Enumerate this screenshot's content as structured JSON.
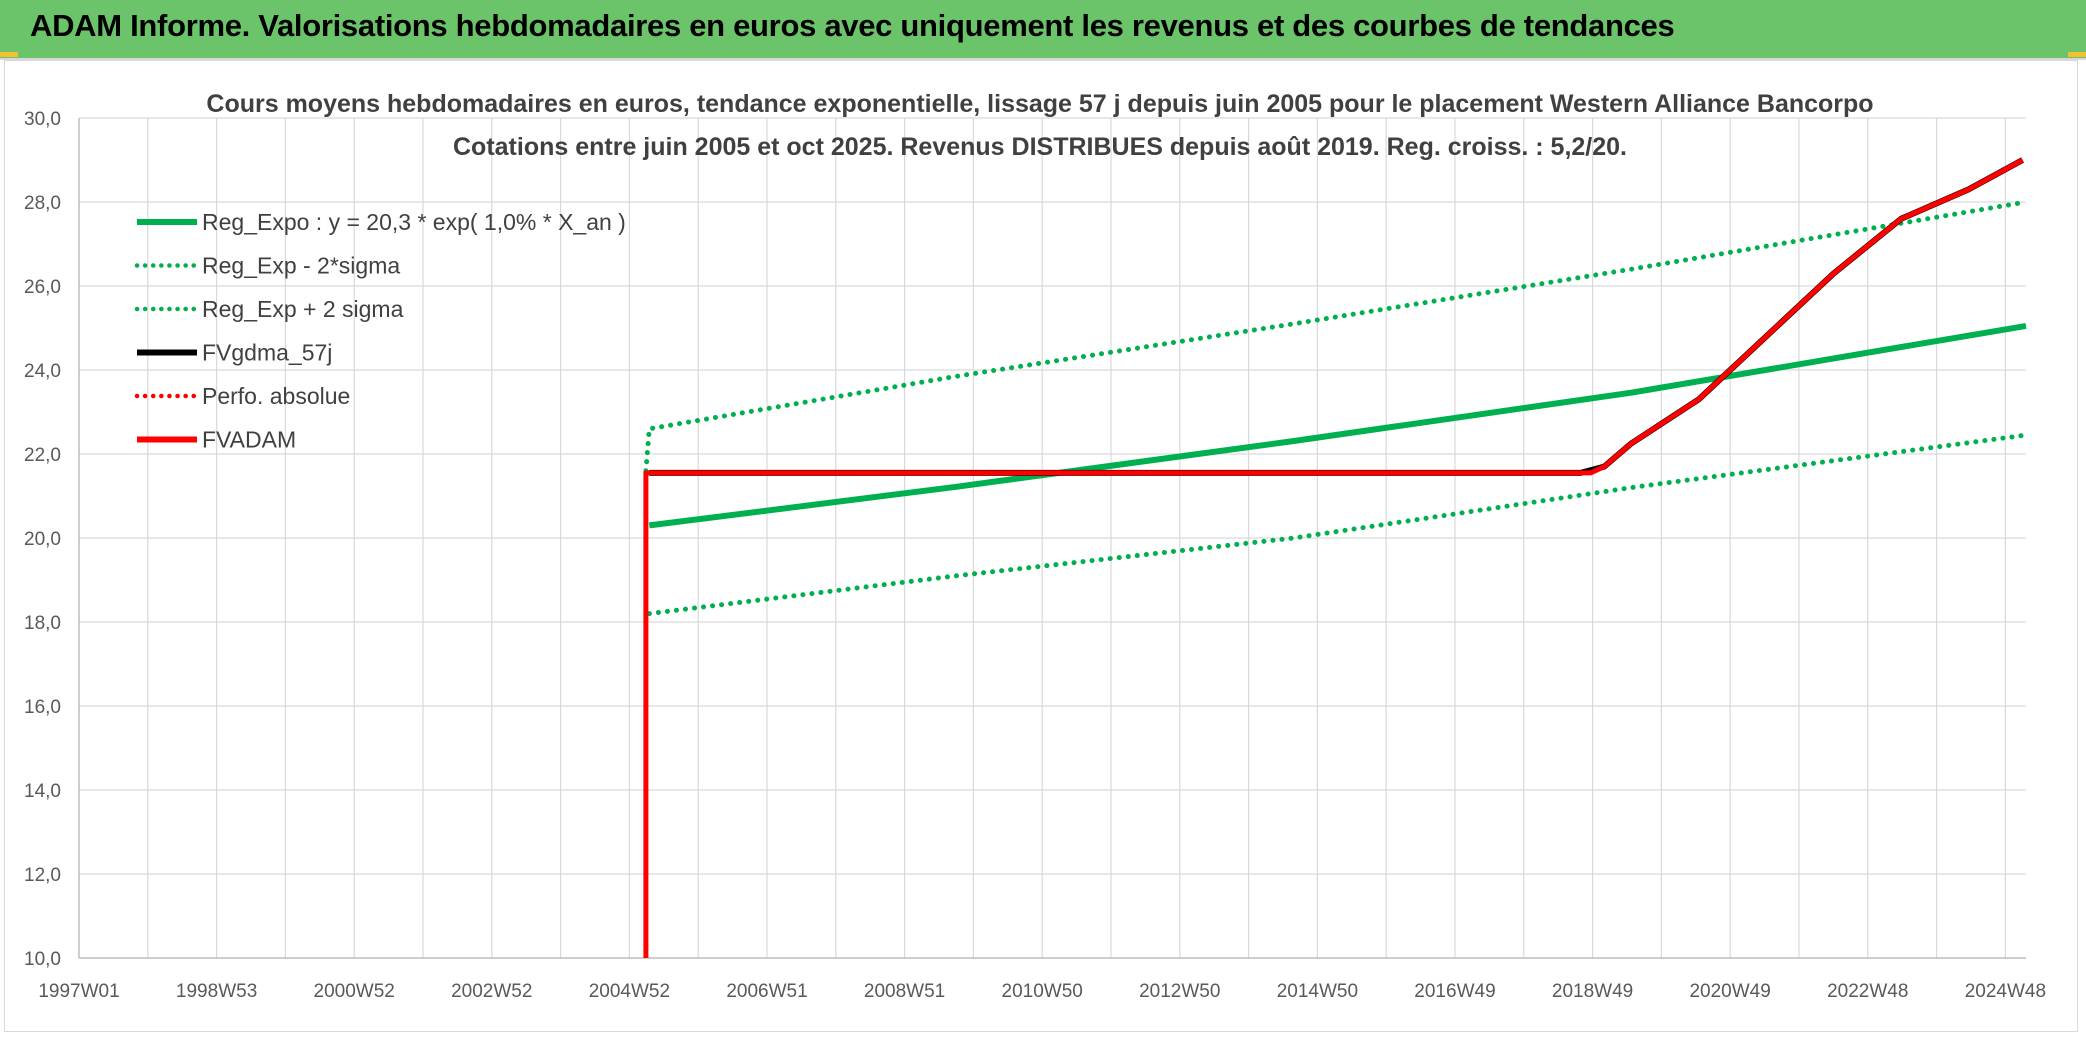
{
  "banner": {
    "title": "ADAM Informe. Valorisations hebdomadaires en euros avec uniquement les revenus et des courbes de tendances"
  },
  "colors": {
    "banner": "#6cc46a",
    "regression": "#00b050",
    "fvadam": "#ff0000",
    "fvgdma": "#000000",
    "grid": "#d9d9d9",
    "axis_text": "#595959",
    "title_text": "#404040"
  },
  "chart_data": {
    "type": "line",
    "title": "Cours moyens hebdomadaires en euros, tendance exponentielle, lissage 57 j depuis juin 2005 pour le placement Western Alliance Bancorpo",
    "subtitle": "Cotations entre juin 2005 et oct 2025. Revenus DISTRIBUES depuis août 2019. Reg. croiss. : 5,2/20.",
    "xlabel": "",
    "ylabel": "",
    "x_tick_labels": [
      "1997W01",
      "1998W53",
      "2000W52",
      "2002W52",
      "2004W52",
      "2006W51",
      "2008W51",
      "2010W50",
      "2012W50",
      "2014W50",
      "2016W49",
      "2018W49",
      "2020W49",
      "2022W48",
      "2024W48"
    ],
    "xlim": [
      1997.0,
      2025.85
    ],
    "ylim": [
      10,
      30
    ],
    "y_ticks": [
      "10,0",
      "12,0",
      "14,0",
      "16,0",
      "18,0",
      "20,0",
      "22,0",
      "24,0",
      "26,0",
      "28,0",
      "30,0"
    ],
    "grid": true,
    "legend_position": "top-left",
    "series": [
      {
        "name": "Reg_Expo : y = 20,3 * exp( 1,0% *  X_an )",
        "style": "solid",
        "color": "#00b050",
        "points": [
          [
            2005.45,
            20.3
          ],
          [
            2010.0,
            21.22
          ],
          [
            2015.0,
            22.31
          ],
          [
            2020.0,
            23.46
          ],
          [
            2025.85,
            25.05
          ]
        ]
      },
      {
        "name": "Reg_Exp - 2*sigma",
        "style": "dotted",
        "color": "#00b050",
        "points": [
          [
            2005.45,
            18.2
          ],
          [
            2010.0,
            19.1
          ],
          [
            2015.0,
            20.0
          ],
          [
            2020.0,
            21.2
          ],
          [
            2025.85,
            22.45
          ]
        ]
      },
      {
        "name": "Reg_Exp + 2 sigma",
        "style": "dotted",
        "color": "#00b050",
        "points": [
          [
            2005.4,
            21.6
          ],
          [
            2005.45,
            22.6
          ],
          [
            2010.0,
            23.85
          ],
          [
            2015.0,
            25.1
          ],
          [
            2020.0,
            26.4
          ],
          [
            2025.85,
            28.0
          ]
        ]
      },
      {
        "name": "FVgdma_57j",
        "style": "solid",
        "color": "#000000",
        "points": [
          [
            2005.45,
            21.55
          ],
          [
            2019.25,
            21.55
          ],
          [
            2019.6,
            21.7
          ],
          [
            2020.0,
            22.25
          ],
          [
            2021.0,
            23.3
          ],
          [
            2022.0,
            24.8
          ],
          [
            2023.0,
            26.3
          ],
          [
            2024.0,
            27.6
          ],
          [
            2025.0,
            28.3
          ],
          [
            2025.8,
            29.0
          ]
        ]
      },
      {
        "name": "Perfo. absolue",
        "style": "dotted",
        "color": "#ff0000",
        "points": []
      },
      {
        "name": "FVADAM",
        "style": "solid",
        "color": "#ff0000",
        "points": [
          [
            2005.4,
            10.0
          ],
          [
            2005.4,
            21.55
          ],
          [
            2019.4,
            21.55
          ],
          [
            2019.6,
            21.7
          ],
          [
            2020.0,
            22.25
          ],
          [
            2021.0,
            23.3
          ],
          [
            2022.0,
            24.8
          ],
          [
            2023.0,
            26.3
          ],
          [
            2024.0,
            27.6
          ],
          [
            2025.0,
            28.3
          ],
          [
            2025.8,
            29.0
          ]
        ]
      }
    ]
  }
}
